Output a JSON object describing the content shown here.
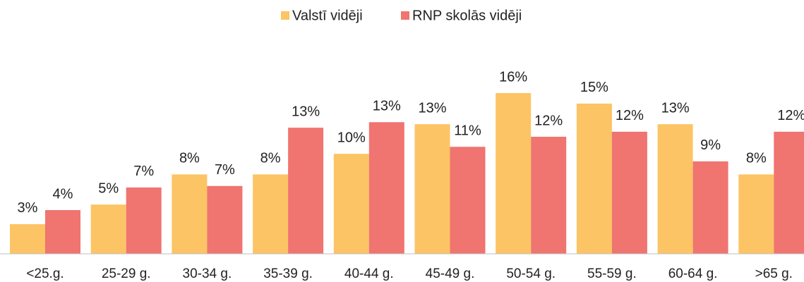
{
  "chart_data": {
    "type": "bar",
    "categories": [
      "<25.g.",
      "25-29 g.",
      "30-34 g.",
      "35-39 g.",
      "40-44 g.",
      "45-49 g.",
      "50-54 g.",
      "55-59 g.",
      "60-64 g.",
      ">65 g."
    ],
    "series": [
      {
        "name": "Valstī vidēji",
        "color": "#fcc464",
        "values": [
          2.95,
          4.9,
          7.9,
          7.9,
          9.95,
          12.9,
          16.0,
          14.95,
          12.9,
          7.9
        ],
        "value_labels": [
          "3%",
          "5%",
          "8%",
          "8%",
          "10%",
          "13%",
          "16%",
          "15%",
          "13%",
          "8%"
        ]
      },
      {
        "name": "RNP skolās vidēji",
        "color": "#f07470",
        "values": [
          4.35,
          6.6,
          6.75,
          12.55,
          13.1,
          10.65,
          11.65,
          12.15,
          9.2,
          12.15
        ],
        "value_labels": [
          "4%",
          "7%",
          "7%",
          "13%",
          "13%",
          "11%",
          "12%",
          "12%",
          "9%",
          "12%"
        ]
      }
    ],
    "ylim": [
      0,
      17.5
    ],
    "legend": "top"
  }
}
